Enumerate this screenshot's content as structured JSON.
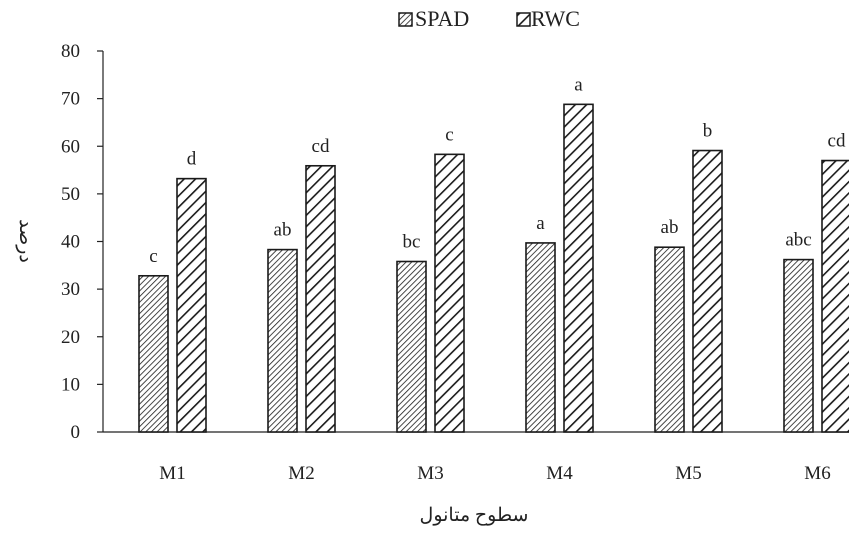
{
  "chart_data": {
    "type": "bar",
    "title": "",
    "xlabel": "سطوح متانول",
    "ylabel": "درصد",
    "ylim": [
      0,
      80
    ],
    "yticks": [
      0,
      10,
      20,
      30,
      40,
      50,
      60,
      70,
      80
    ],
    "categories": [
      "M1",
      "M2",
      "M3",
      "M4",
      "M5",
      "M6"
    ],
    "legend_position": "top-center",
    "grid": false,
    "series": [
      {
        "name": "SPAD",
        "pattern": "dense-diagonal-hatch",
        "values": [
          32.8,
          38.3,
          35.8,
          39.7,
          38.8,
          36.2
        ],
        "labels": [
          "c",
          "ab",
          "bc",
          "a",
          "ab",
          "abc"
        ]
      },
      {
        "name": "RWC",
        "pattern": "wide-diagonal-hatch",
        "values": [
          53.2,
          55.9,
          58.3,
          68.8,
          59.1,
          57.0
        ],
        "labels": [
          "d",
          "cd",
          "c",
          "a",
          "b",
          "cd"
        ]
      }
    ]
  }
}
